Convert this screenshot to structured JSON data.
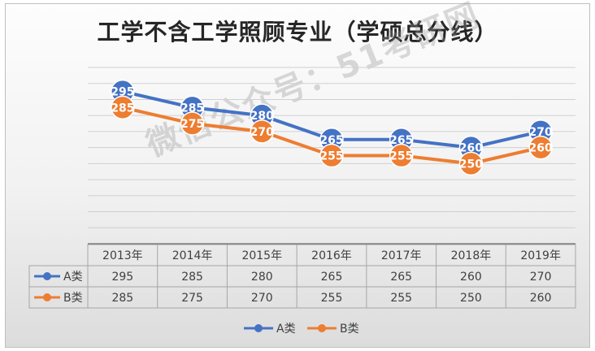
{
  "chart_data": {
    "type": "line",
    "title": "工学不含工学照顾专业（学硕总分线）",
    "categories": [
      "2013年",
      "2014年",
      "2015年",
      "2016年",
      "2017年",
      "2018年",
      "2019年"
    ],
    "series": [
      {
        "name": "A类",
        "values": [
          295,
          285,
          280,
          265,
          265,
          260,
          270
        ],
        "color": "#4472c4"
      },
      {
        "name": "B类",
        "values": [
          285,
          275,
          270,
          255,
          255,
          250,
          260
        ],
        "color": "#ed7d31"
      }
    ],
    "ylim": [
      200,
      310
    ],
    "grid": true,
    "data_table": true,
    "legend": "bottom"
  },
  "watermark": "微信公众号：51考研网"
}
